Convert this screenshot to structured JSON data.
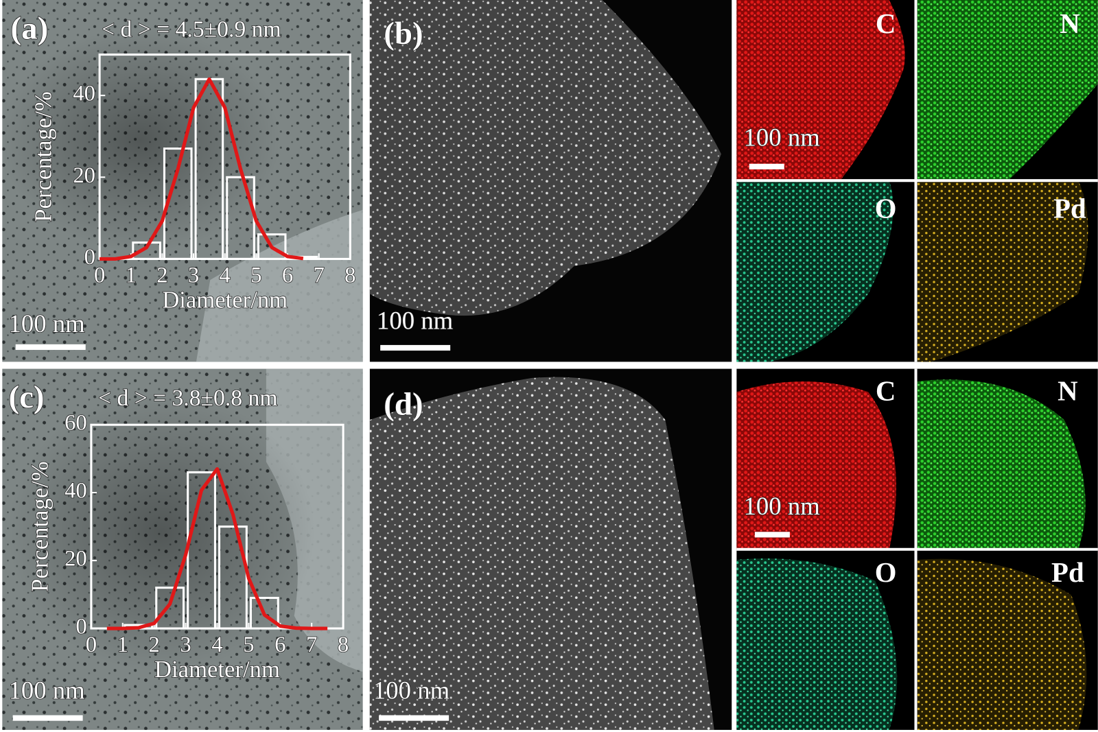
{
  "chart_data": [
    {
      "type": "histogram",
      "panel": "(a)",
      "annotation": "< d > = 4.5±0.9 nm",
      "xlabel": "Diameter/nm",
      "ylabel": "Percentage/%",
      "bins": [
        1,
        2,
        3,
        4,
        5,
        6,
        7
      ],
      "values": [
        4,
        27,
        44,
        20,
        6,
        0.5
      ],
      "color": "#ffffff",
      "fit": {
        "color": "#e01818",
        "x": [
          0,
          0.5,
          1,
          1.5,
          2,
          2.5,
          3,
          3.5,
          4,
          4.5,
          5,
          5.5,
          6,
          6.5
        ],
        "values": [
          0,
          0,
          0.6,
          2.8,
          9.3,
          22,
          37,
          44,
          37,
          22,
          9.3,
          2.8,
          0.6,
          0.1
        ]
      },
      "xlim": [
        0,
        8
      ],
      "ylim": [
        0,
        50
      ],
      "xticks": [
        0,
        1,
        2,
        3,
        4,
        5,
        6,
        7,
        8
      ],
      "yticks": [
        0,
        20,
        40
      ]
    },
    {
      "type": "histogram",
      "panel": "(c)",
      "annotation": "< d > = 3.8±0.8 nm",
      "xlabel": "Diameter/nm",
      "ylabel": "Percentage/%",
      "bins": [
        1,
        2,
        3,
        4,
        5,
        6
      ],
      "values": [
        1,
        12,
        46,
        30,
        9
      ],
      "color": "#ffffff",
      "fit": {
        "color": "#e01818",
        "x": [
          0.5,
          1,
          1.5,
          2,
          2.5,
          3,
          3.5,
          4,
          4.5,
          5,
          5.5,
          6,
          6.5,
          7,
          7.5
        ],
        "values": [
          0,
          0,
          0.2,
          1.5,
          7.2,
          21.7,
          40.7,
          47,
          33.6,
          14.8,
          4,
          0.7,
          0.1,
          0,
          0
        ]
      },
      "xlim": [
        0,
        8
      ],
      "ylim": [
        0,
        60
      ],
      "xticks": [
        0,
        1,
        2,
        3,
        4,
        5,
        6,
        7,
        8
      ],
      "yticks": [
        0,
        20,
        40,
        60
      ]
    }
  ],
  "panels": {
    "b": "(b)",
    "d": "(d)"
  },
  "scale_bars": [
    "100 nm",
    "100 nm",
    "100 nm",
    "100 nm",
    "100 nm",
    "100 nm"
  ],
  "maps": [
    {
      "labels": [
        "C",
        "N",
        "O",
        "Pd"
      ]
    },
    {
      "labels": [
        "C",
        "N",
        "O",
        "Pd"
      ]
    }
  ]
}
